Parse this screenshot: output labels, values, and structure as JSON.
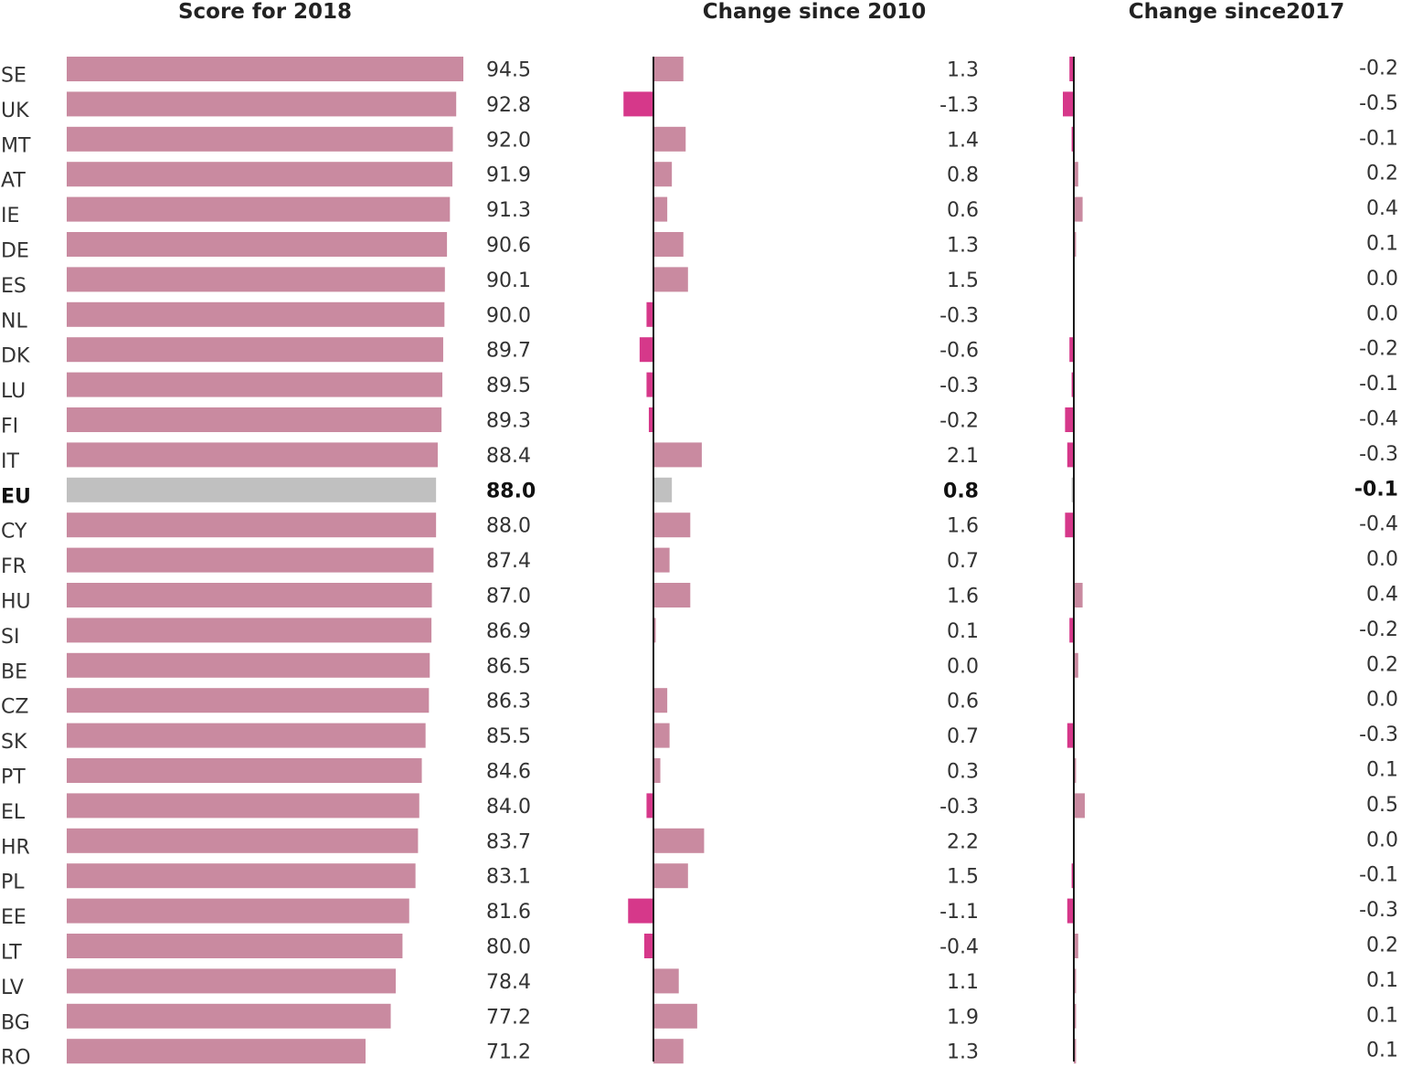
{
  "colors": {
    "bar": "#c98aa0",
    "negative": "#d6388a",
    "eu": "#c0c0c0",
    "axis": "#1a1a1a"
  },
  "chart_data": {
    "type": "bar",
    "orientation": "horizontal",
    "highlight_category": "EU",
    "categories": [
      "SE",
      "UK",
      "MT",
      "AT",
      "IE",
      "DE",
      "ES",
      "NL",
      "DK",
      "LU",
      "FI",
      "IT",
      "EU",
      "CY",
      "FR",
      "HU",
      "SI",
      "BE",
      "CZ",
      "SK",
      "PT",
      "EL",
      "HR",
      "PL",
      "EE",
      "LT",
      "LV",
      "BG",
      "RO"
    ],
    "series": [
      {
        "name": "Score for 2018",
        "values": [
          94.5,
          92.8,
          92.0,
          91.9,
          91.3,
          90.6,
          90.1,
          90.0,
          89.7,
          89.5,
          89.3,
          88.4,
          88.0,
          88.0,
          87.4,
          87.0,
          86.9,
          86.5,
          86.3,
          85.5,
          84.6,
          84.0,
          83.7,
          83.1,
          81.6,
          80.0,
          78.4,
          77.2,
          71.2
        ],
        "labels": [
          "94.5",
          "92.8",
          "92.0",
          "91.9",
          "91.3",
          "90.6",
          "90.1",
          "90.0",
          "89.7",
          "89.5",
          "89.3",
          "88.4",
          "88.0",
          "88.0",
          "87.4",
          "87.0",
          "86.9",
          "86.5",
          "86.3",
          "85.5",
          "84.6",
          "84.0",
          "83.7",
          "83.1",
          "81.6",
          "80.0",
          "78.4",
          "77.2",
          "71.2"
        ]
      },
      {
        "name": "Change since 2010",
        "values": [
          1.3,
          -1.3,
          1.4,
          0.8,
          0.6,
          1.3,
          1.5,
          -0.3,
          -0.6,
          -0.3,
          -0.2,
          2.1,
          0.8,
          1.6,
          0.7,
          1.6,
          0.1,
          0.0,
          0.6,
          0.7,
          0.3,
          -0.3,
          2.2,
          1.5,
          -1.1,
          -0.4,
          1.1,
          1.9,
          1.3
        ],
        "labels": [
          "1.3",
          "-1.3",
          "1.4",
          "0.8",
          "0.6",
          "1.3",
          "1.5",
          "-0.3",
          "-0.6",
          "-0.3",
          "-0.2",
          "2.1",
          "0.8",
          "1.6",
          "0.7",
          "1.6",
          "0.1",
          "0.0",
          "0.6",
          "0.7",
          "0.3",
          "-0.3",
          "2.2",
          "1.5",
          "-1.1",
          "-0.4",
          "1.1",
          "1.9",
          "1.3"
        ]
      },
      {
        "name": "Change since2017",
        "values": [
          -0.2,
          -0.5,
          -0.1,
          0.2,
          0.4,
          0.1,
          0.0,
          0.0,
          -0.2,
          -0.1,
          -0.4,
          -0.3,
          -0.1,
          -0.4,
          0.0,
          0.4,
          -0.2,
          0.2,
          0.0,
          -0.3,
          0.1,
          0.5,
          0.0,
          -0.1,
          -0.3,
          0.2,
          0.1,
          0.1,
          0.1
        ],
        "labels": [
          "-0.2",
          "-0.5",
          "-0.1",
          "0.2",
          "0.4",
          "0.1",
          "0.0",
          "0.0",
          "-0.2",
          "-0.1",
          "-0.4",
          "-0.3",
          "-0.1",
          "-0.4",
          "0.0",
          "0.4",
          "-0.2",
          "0.2",
          "0.0",
          "-0.3",
          "0.1",
          "0.5",
          "0.0",
          "-0.1",
          "-0.3",
          "0.2",
          "0.1",
          "0.1",
          "0.1"
        ]
      }
    ]
  }
}
